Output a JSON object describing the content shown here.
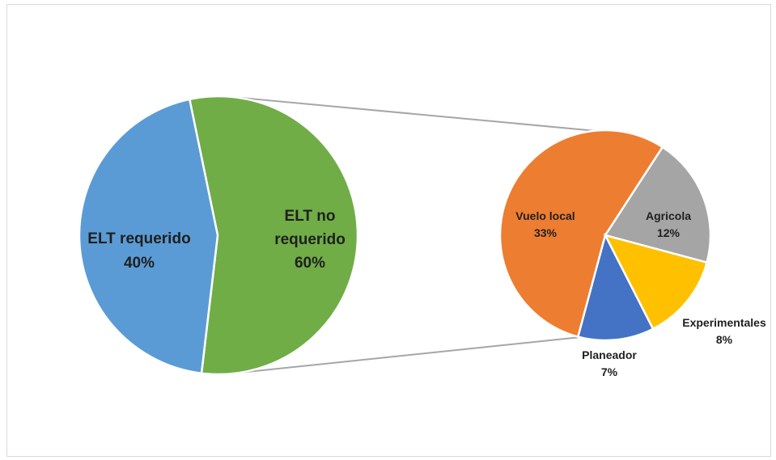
{
  "chart_data": {
    "type": "pie",
    "subtype": "pie-of-pie",
    "main_pie": {
      "slices": [
        {
          "id": "elt_no_req",
          "label_lines": [
            "ELT no",
            "requerido"
          ],
          "pct_text": "60%",
          "value": 60,
          "color": "#70ad47"
        },
        {
          "id": "elt_req",
          "label_lines": [
            "ELT requerido"
          ],
          "pct_text": "40%",
          "value": 40,
          "color": "#5b9bd5"
        }
      ]
    },
    "secondary_pie": {
      "parent": "elt_no_req",
      "slices": [
        {
          "id": "vuelo_local",
          "label": "Vuelo local",
          "pct_text": "33%",
          "value": 33,
          "color": "#ed7d31"
        },
        {
          "id": "agricola",
          "label": "Agricola",
          "pct_text": "12%",
          "value": 12,
          "color": "#a5a5a5"
        },
        {
          "id": "experimentales",
          "label": "Experimentales",
          "pct_text": "8%",
          "value": 8,
          "color": "#ffc000"
        },
        {
          "id": "planeador",
          "label": "Planeador",
          "pct_text": "7%",
          "value": 7,
          "color": "#4472c4"
        }
      ]
    },
    "connector_color": "#a6a6a6",
    "legend": "none"
  }
}
